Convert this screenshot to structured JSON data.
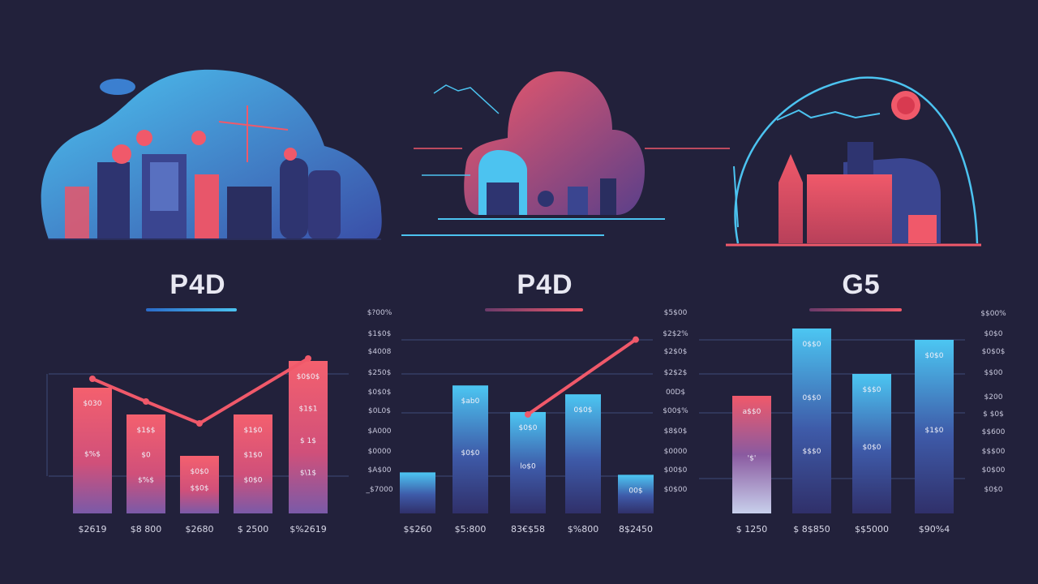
{
  "colors": {
    "background": "#22213b",
    "red": "#f0596a",
    "blue": "#4cc3f0",
    "navy": "#37397a",
    "grid": "#3d4a7a",
    "text": "#d8d8e8"
  },
  "panels": [
    {
      "title": "P4D",
      "underline_color": "#3b9de8"
    },
    {
      "title": "P4D",
      "underline_color": "#f0596a"
    },
    {
      "title": "G5",
      "underline_color": "#f0596a"
    }
  ],
  "chart_data": [
    {
      "type": "bar",
      "title": "P4D",
      "ylim": [
        0,
        200
      ],
      "grid": true,
      "categories": [
        "$2619",
        "$8 800",
        "$2680",
        "$ 2500",
        "$%2619"
      ],
      "values": [
        155,
        122,
        71,
        122,
        188
      ],
      "bar_colors": [
        "#f0596a",
        "#f0596a",
        "#f0596a",
        "#f0596a",
        "#f0596a"
      ],
      "bar_inner_labels": [
        [
          "$030",
          "$%$"
        ],
        [
          "$1$$",
          "$0",
          "$%$"
        ],
        [
          "$0$0",
          "$$0$"
        ],
        [
          "$1$0",
          "$1$0",
          "$0$0"
        ],
        [
          "$0$0$",
          "$1$1",
          "$ 1$",
          "$\\1$"
        ]
      ],
      "line": {
        "color": "#f0596a",
        "x_index": [
          0,
          1,
          2,
          4
        ],
        "values": [
          166,
          138,
          111,
          191
        ]
      },
      "y_ticks": [],
      "y_ticks_right": []
    },
    {
      "type": "bar",
      "title": "P4D",
      "ylim": [
        0,
        250
      ],
      "grid": true,
      "categories": [
        "$$260",
        "$5:800",
        "83€$58",
        "$%800",
        "8$2450"
      ],
      "values": [
        51,
        159,
        126,
        148,
        48
      ],
      "bar_colors": [
        "#4cc3f0",
        "#4cc3f0",
        "#4cc3f0",
        "#4cc3f0",
        "#4cc3f0"
      ],
      "bar_inner_labels": [
        [],
        [
          "$ab0",
          "$0$0"
        ],
        [
          "$0$0",
          "lo$0"
        ],
        [
          "0$0$"
        ],
        [
          "00$"
        ]
      ],
      "line": {
        "color": "#f0596a",
        "x_index": [
          2,
          4.4
        ],
        "values": [
          123,
          216
        ]
      },
      "y_ticks": [
        "$?00%",
        "$1$0$",
        "$4008",
        "$250$",
        "$0$0$",
        "$0L0$",
        "$A000",
        "$0000",
        "$A$00",
        "_$7000"
      ],
      "y_ticks_right": [
        "$5$00",
        "$2$2%",
        "$2$0$",
        "$2$2$",
        "00D$",
        "$00$%",
        "$8$0$",
        "$0000",
        "$00$0",
        "$0$00"
      ]
    },
    {
      "type": "bar",
      "title": "G5",
      "ylim": [
        0,
        250
      ],
      "grid": true,
      "categories": [
        "$ 1250",
        "$ 8$850",
        "$$5000",
        "$90%4"
      ],
      "values": [
        145,
        228,
        172,
        214
      ],
      "bar_colors": [
        "#f0596a",
        "#4cc3f0",
        "#4cc3f0",
        "#4cc3f0"
      ],
      "bar_inner_labels": [
        [
          "a$$0",
          "'$'"
        ],
        [
          "0$$0",
          "0$$0",
          "$$$0"
        ],
        [
          "$$$0",
          "$0$0"
        ],
        [
          "$0$0",
          "$1$0"
        ]
      ],
      "line": null,
      "y_ticks": [],
      "y_ticks_right": [
        "$$00%",
        "$0$0",
        "$0$0$",
        "$$00",
        "$200",
        "$ $0$",
        "$$600",
        "$$$00",
        "$0$00",
        "$0$0"
      ]
    }
  ]
}
